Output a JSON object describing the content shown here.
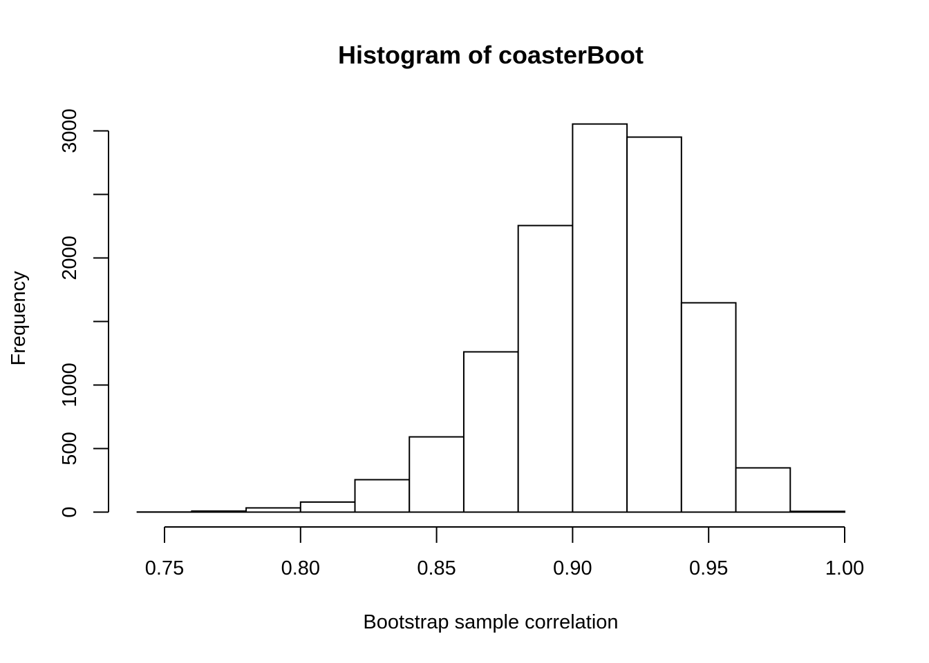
{
  "chart_data": {
    "type": "bar",
    "title": "Histogram of coasterBoot",
    "xlabel": "Bootstrap sample correlation",
    "ylabel": "Frequency",
    "bin_edges": [
      0.74,
      0.76,
      0.78,
      0.8,
      0.82,
      0.84,
      0.86,
      0.88,
      0.9,
      0.92,
      0.94,
      0.96,
      0.98,
      1.0
    ],
    "values": [
      1,
      8,
      33,
      79,
      255,
      592,
      1261,
      2255,
      3054,
      2951,
      1647,
      348,
      6
    ],
    "xlim": [
      0.74,
      1.0
    ],
    "ylim": [
      0,
      3000
    ],
    "x_ticks": [
      0.75,
      0.8,
      0.85,
      0.9,
      0.95,
      1.0
    ],
    "x_tick_labels": [
      "0.75",
      "0.80",
      "0.85",
      "0.90",
      "0.95",
      "1.00"
    ],
    "y_ticks": [
      0,
      500,
      1000,
      1500,
      2000,
      2500,
      3000
    ],
    "y_tick_labels": [
      "0",
      "500",
      "1000",
      "",
      "2000",
      "",
      "3000"
    ],
    "grid": false,
    "bar_fill": "#ffffff",
    "bar_stroke": "#000000"
  }
}
